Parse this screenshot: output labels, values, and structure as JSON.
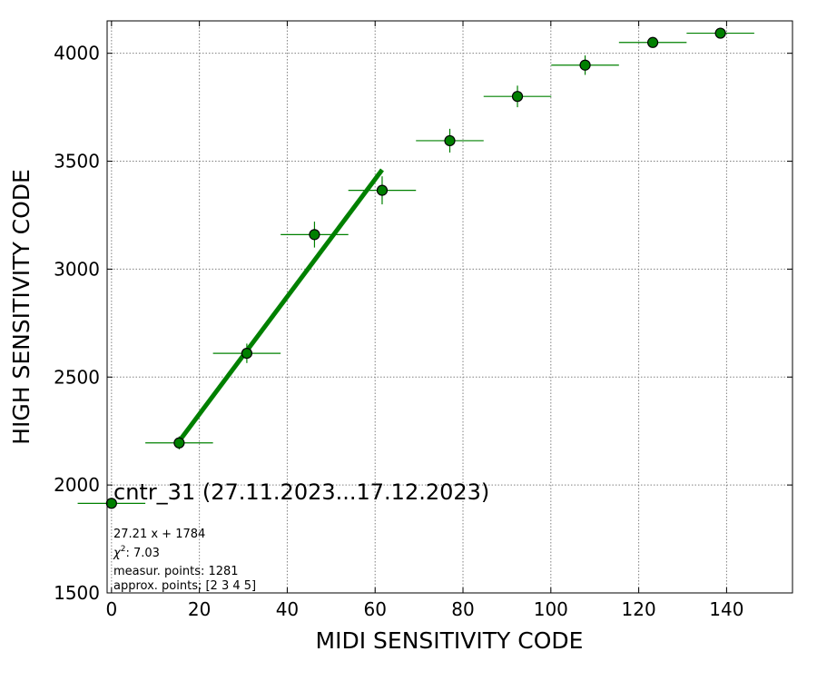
{
  "chart_data": {
    "type": "scatter",
    "xlabel": "MIDI SENSITIVITY CODE",
    "ylabel": "HIGH SENSITIVITY CODE",
    "xlim": [
      -1,
      155
    ],
    "ylim": [
      1500,
      4150
    ],
    "xticks": [
      0,
      20,
      40,
      60,
      80,
      100,
      120,
      140
    ],
    "yticks": [
      1500,
      2000,
      2500,
      3000,
      3500,
      4000
    ],
    "grid": true,
    "marker_color": "#008000",
    "marker_edge": "#000000",
    "fit_color": "#008000",
    "points": [
      {
        "x": 0,
        "y": 1915,
        "xerr": 7.7,
        "yerr": 0
      },
      {
        "x": 15.4,
        "y": 2195,
        "xerr": 7.7,
        "yerr": 30
      },
      {
        "x": 30.8,
        "y": 2610,
        "xerr": 7.7,
        "yerr": 45
      },
      {
        "x": 46.2,
        "y": 3160,
        "xerr": 7.7,
        "yerr": 60
      },
      {
        "x": 61.6,
        "y": 3365,
        "xerr": 7.7,
        "yerr": 65
      },
      {
        "x": 77.0,
        "y": 3595,
        "xerr": 7.7,
        "yerr": 55
      },
      {
        "x": 92.4,
        "y": 3800,
        "xerr": 7.7,
        "yerr": 50
      },
      {
        "x": 107.8,
        "y": 3945,
        "xerr": 7.7,
        "yerr": 45
      },
      {
        "x": 123.2,
        "y": 4050,
        "xerr": 7.7,
        "yerr": 20
      },
      {
        "x": 138.6,
        "y": 4093,
        "xerr": 7.7,
        "yerr": 15
      }
    ],
    "fit": {
      "slope": 27.21,
      "intercept": 1784,
      "x_range": [
        15.4,
        61.6
      ]
    },
    "annotations": {
      "title": "cntr_31 (27.11.2023...17.12.2023)",
      "equation": "27.21 x + 1784",
      "chi2_symbol": "χ",
      "chi2_exp": "2",
      "chi2_value": ": 7.03",
      "measur_points": "measur. points: 1281",
      "approx_points": "approx. points: [2 3 4 5]"
    }
  }
}
